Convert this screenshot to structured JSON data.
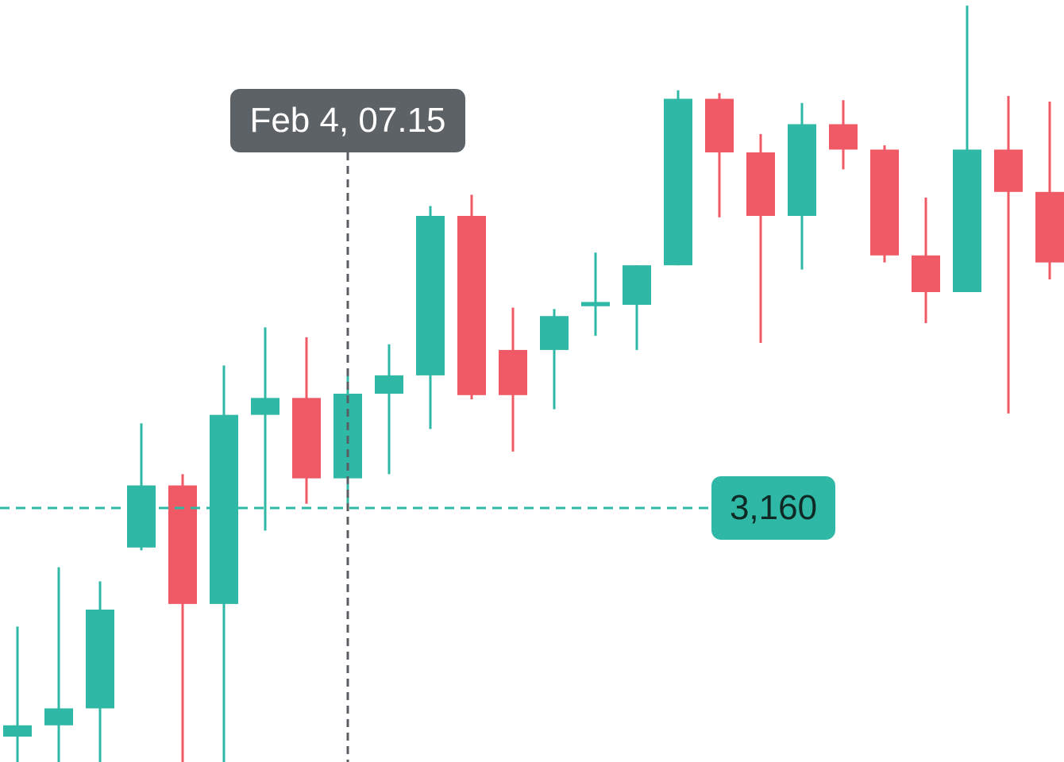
{
  "colors": {
    "up": "#2eb8a5",
    "down": "#f05a66",
    "crosshair": "#5a5e62",
    "time_badge_bg": "#5c6266",
    "price_badge_bg": "#2eb8a5"
  },
  "crosshair": {
    "time_label": "Feb 4, 07.15",
    "price_label": "3,160",
    "price_value": 3160,
    "candle_index": 8
  },
  "chart_data": {
    "type": "candlestick",
    "axis_labels_visible": false,
    "grid": false,
    "ylim": [
      2800,
      3880
    ],
    "candles": [
      {
        "open": 2836,
        "close": 2852,
        "high": 2992,
        "low": 2792
      },
      {
        "open": 2852,
        "close": 2876,
        "high": 3076,
        "low": 2792
      },
      {
        "open": 2876,
        "close": 3016,
        "high": 3056,
        "low": 2792
      },
      {
        "open": 3104,
        "close": 3192,
        "high": 3280,
        "low": 3100
      },
      {
        "open": 3192,
        "close": 3024,
        "high": 3208,
        "low": 2792
      },
      {
        "open": 3024,
        "close": 3292,
        "high": 3362,
        "low": 2792
      },
      {
        "open": 3292,
        "close": 3316,
        "high": 3416,
        "low": 3128
      },
      {
        "open": 3316,
        "close": 3202,
        "high": 3402,
        "low": 3166
      },
      {
        "open": 3202,
        "close": 3322,
        "high": 3350,
        "low": 3162
      },
      {
        "open": 3322,
        "close": 3348,
        "high": 3392,
        "low": 3208
      },
      {
        "open": 3348,
        "close": 3574,
        "high": 3588,
        "low": 3272
      },
      {
        "open": 3574,
        "close": 3320,
        "high": 3604,
        "low": 3314
      },
      {
        "open": 3384,
        "close": 3320,
        "high": 3444,
        "low": 3240
      },
      {
        "open": 3384,
        "close": 3432,
        "high": 3442,
        "low": 3300
      },
      {
        "open": 3446,
        "close": 3452,
        "high": 3522,
        "low": 3404
      },
      {
        "open": 3448,
        "close": 3504,
        "high": 3504,
        "low": 3384
      },
      {
        "open": 3504,
        "close": 3740,
        "high": 3752,
        "low": 3504
      },
      {
        "open": 3740,
        "close": 3664,
        "high": 3748,
        "low": 3572
      },
      {
        "open": 3664,
        "close": 3574,
        "high": 3690,
        "low": 3394
      },
      {
        "open": 3574,
        "close": 3704,
        "high": 3734,
        "low": 3498
      },
      {
        "open": 3704,
        "close": 3668,
        "high": 3738,
        "low": 3640
      },
      {
        "open": 3668,
        "close": 3518,
        "high": 3674,
        "low": 3508
      },
      {
        "open": 3518,
        "close": 3466,
        "high": 3600,
        "low": 3422
      },
      {
        "open": 3466,
        "close": 3668,
        "high": 3872,
        "low": 3466
      },
      {
        "open": 3668,
        "close": 3608,
        "high": 3744,
        "low": 3294
      },
      {
        "open": 3608,
        "close": 3508,
        "high": 3736,
        "low": 3484
      }
    ]
  }
}
